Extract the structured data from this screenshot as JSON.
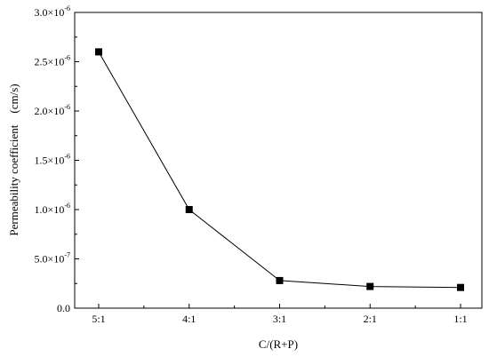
{
  "chart_data": {
    "type": "line",
    "title": "",
    "xlabel": "C/(R+P)",
    "ylabel": "Permeability coefficient　(cm/s)",
    "categories": [
      "5:1",
      "4:1",
      "3:1",
      "2:1",
      "1:1"
    ],
    "series": [
      {
        "values": [
          2.6e-06,
          1e-06,
          2.8e-07,
          2.2e-07,
          2.1e-07
        ]
      }
    ],
    "ylim": [
      0,
      3e-06
    ],
    "yticks": [
      {
        "value": 0,
        "mantissa": "0.0",
        "exponent": ""
      },
      {
        "value": 5e-07,
        "mantissa": "5.0×10",
        "exponent": "-7"
      },
      {
        "value": 1e-06,
        "mantissa": "1.0×10",
        "exponent": "-6"
      },
      {
        "value": 1.5e-06,
        "mantissa": "1.5×10",
        "exponent": "-6"
      },
      {
        "value": 2e-06,
        "mantissa": "2.0×10",
        "exponent": "-6"
      },
      {
        "value": 2.5e-06,
        "mantissa": "2.5×10",
        "exponent": "-6"
      },
      {
        "value": 3e-06,
        "mantissa": "3.0×10",
        "exponent": "-6"
      }
    ],
    "grid": false,
    "legend": false,
    "marker": "square",
    "colors": {
      "line": "#000000",
      "marker": "#000000",
      "axis": "#000000"
    }
  }
}
